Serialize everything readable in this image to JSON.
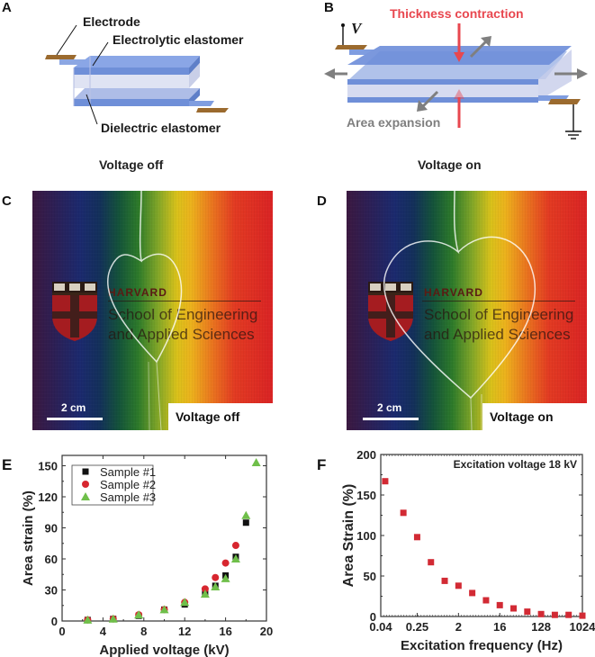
{
  "panels": {
    "A": {
      "letter": "A",
      "labels": {
        "electrode": "Electrode",
        "electrolytic": "Electrolytic elastomer",
        "dielectric": "Dielectric elastomer"
      },
      "caption": "Voltage off"
    },
    "B": {
      "letter": "B",
      "labels": {
        "voltage_symbol": "V",
        "thickness": "Thickness contraction",
        "area": "Area expansion"
      },
      "caption": "Voltage on"
    },
    "C": {
      "letter": "C",
      "scale": "2 cm",
      "state": "Voltage off",
      "logo": {
        "line1": "HARVARD",
        "line2": "School of Engineering",
        "line3": "and Applied Sciences",
        "shield": "VE RI TAS"
      }
    },
    "D": {
      "letter": "D",
      "scale": "2 cm",
      "state": "Voltage on",
      "logo": {
        "line1": "HARVARD",
        "line2": "School of Engineering",
        "line3": "and Applied Sciences",
        "shield": "VE RI TAS"
      }
    },
    "E": {
      "letter": "E"
    },
    "F": {
      "letter": "F"
    }
  },
  "colors": {
    "elastomer_blue": "#6f8fd8",
    "electrode_brown": "#9b6a2e",
    "thickness_red": "#e8474f",
    "arrow_gray": "#7f7f7f",
    "sample1": "#111111",
    "sample2": "#d7262f",
    "sample3": "#6fbf4a",
    "f_marker": "#d22a34"
  },
  "chart_data": [
    {
      "type": "scatter",
      "panel": "E",
      "title": "",
      "xlabel": "Applied voltage (kV)",
      "ylabel": "Area strain (%)",
      "xlim": [
        0,
        20
      ],
      "ylim": [
        0,
        160
      ],
      "xticks": [
        0,
        4,
        8,
        12,
        16,
        20
      ],
      "yticks": [
        0,
        30,
        60,
        90,
        120,
        150
      ],
      "grid": false,
      "legend": "top-left",
      "series": [
        {
          "name": "Sample #1",
          "marker": "square",
          "x": [
            2.5,
            5,
            7.5,
            10,
            12,
            14,
            15,
            16,
            17,
            18
          ],
          "y": [
            1,
            2,
            5,
            11,
            16,
            27,
            34,
            44,
            62,
            95
          ]
        },
        {
          "name": "Sample #2",
          "marker": "circle",
          "x": [
            2.5,
            5,
            7.5,
            10,
            12,
            14,
            15,
            16,
            17
          ],
          "y": [
            1,
            2,
            6,
            11,
            18,
            31,
            42,
            56,
            73
          ]
        },
        {
          "name": "Sample #3",
          "marker": "triangle",
          "x": [
            2.5,
            5,
            7.5,
            10,
            12,
            14,
            15,
            16,
            17,
            18,
            19
          ],
          "y": [
            1,
            2,
            6,
            11,
            18,
            26,
            33,
            41,
            60,
            102,
            153
          ]
        }
      ]
    },
    {
      "type": "scatter",
      "panel": "F",
      "title": "",
      "annotation": "Excitation voltage 18 kV",
      "xlabel": "Excitation frequency (Hz)",
      "ylabel": "Area Strain (%)",
      "xscale": "log2",
      "xlim": [
        0.04,
        1024
      ],
      "ylim": [
        0,
        200
      ],
      "xticks": [
        0.04,
        0.25,
        2,
        16,
        128,
        1024
      ],
      "xticklabels": [
        "0.04",
        "0.25",
        "2",
        "16",
        "128",
        "1024"
      ],
      "yticks": [
        0,
        50,
        100,
        150,
        200
      ],
      "grid": false,
      "series": [
        {
          "name": "Area strain",
          "marker": "square",
          "x": [
            0.05,
            0.125,
            0.25,
            0.5,
            1,
            2,
            4,
            8,
            16,
            32,
            64,
            128,
            256,
            512,
            1024
          ],
          "y": [
            167,
            128,
            98,
            67,
            44,
            38,
            29,
            20,
            14,
            10,
            6,
            3,
            2,
            2,
            1
          ]
        }
      ]
    }
  ]
}
